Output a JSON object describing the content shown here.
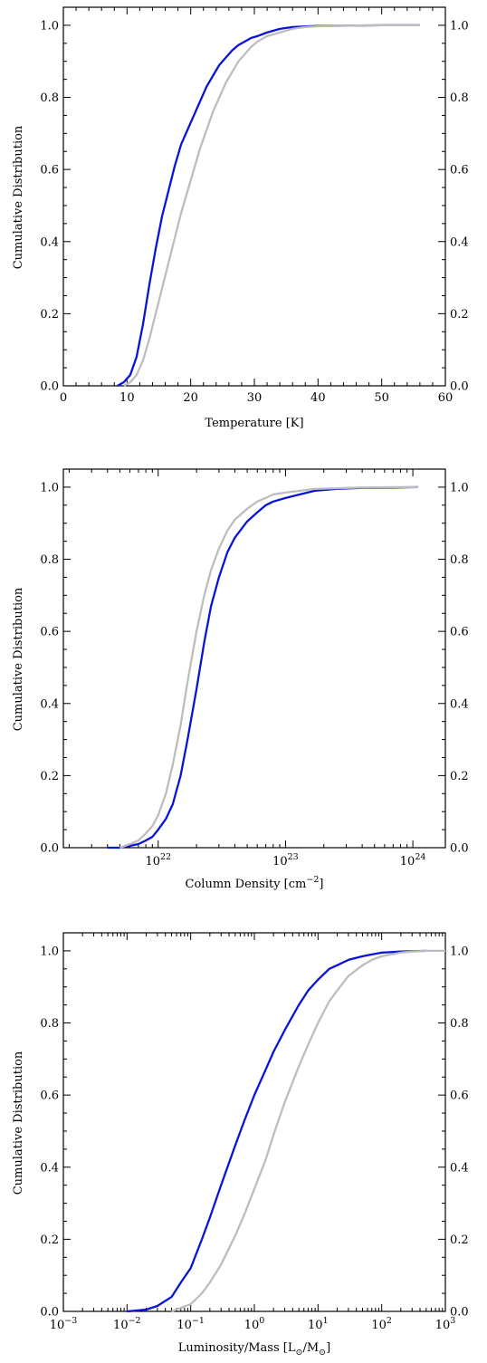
{
  "chart_data": [
    {
      "type": "line",
      "xlabel": "Temperature [K]",
      "ylabel": "Cumulative Distribution",
      "xscale": "linear",
      "xlim": [
        0,
        60
      ],
      "ylim": [
        0,
        1.05
      ],
      "x_ticks": [
        0,
        10,
        20,
        30,
        40,
        50,
        60
      ],
      "x_tick_labels": [
        "0",
        "10",
        "20",
        "30",
        "40",
        "50",
        "60"
      ],
      "y_ticks": [
        0,
        0.2,
        0.4,
        0.6,
        0.8,
        1.0
      ],
      "y_tick_labels": [
        "0.0",
        "0.2",
        "0.4",
        "0.6",
        "0.8",
        "1.0"
      ],
      "right_tick_labels": true,
      "grid": false,
      "legend": "none",
      "series": [
        {
          "color": "#0a14d8",
          "x": [
            8.5,
            9.5,
            10.5,
            11.5,
            12.5,
            13.5,
            14.5,
            15.5,
            16.5,
            17.5,
            18.5,
            19.5,
            20.5,
            21.5,
            22.5,
            23.5,
            24.5,
            25.5,
            26.5,
            27.5,
            28.5,
            29.5,
            30.5,
            32,
            34,
            36,
            38,
            40,
            45,
            50,
            56
          ],
          "y": [
            0.0,
            0.01,
            0.03,
            0.08,
            0.17,
            0.28,
            0.38,
            0.47,
            0.54,
            0.61,
            0.67,
            0.71,
            0.75,
            0.79,
            0.83,
            0.86,
            0.89,
            0.91,
            0.93,
            0.945,
            0.955,
            0.965,
            0.97,
            0.98,
            0.99,
            0.995,
            0.997,
            0.998,
            0.999,
            1.0,
            1.0
          ]
        },
        {
          "color": "#bdbdbd",
          "x": [
            9.5,
            10.5,
            11.5,
            12.5,
            13.5,
            14.5,
            15.5,
            16.5,
            17.5,
            18.5,
            19.5,
            20.5,
            21.5,
            22.5,
            23.5,
            24.5,
            25.5,
            26.5,
            27.5,
            28.5,
            29.5,
            30.5,
            32,
            34,
            36,
            38,
            40,
            45,
            50,
            56
          ],
          "y": [
            0.0,
            0.01,
            0.03,
            0.07,
            0.13,
            0.2,
            0.27,
            0.34,
            0.41,
            0.48,
            0.54,
            0.6,
            0.66,
            0.71,
            0.76,
            0.8,
            0.84,
            0.87,
            0.9,
            0.92,
            0.94,
            0.955,
            0.97,
            0.98,
            0.99,
            0.995,
            0.997,
            0.999,
            1.0,
            1.0
          ]
        }
      ]
    },
    {
      "type": "line",
      "xlabel": "Column Density [cm",
      "xlabel_sup": "−2",
      "xlabel_end": "]",
      "ylabel": "Cumulative Distribution",
      "xscale": "log",
      "xlim": [
        1.8e+21,
        1.8e+24
      ],
      "ylim": [
        0,
        1.05
      ],
      "x_major_exponents": [
        22,
        23,
        24
      ],
      "x_tick_base": "10",
      "x_tick_exp_labels": [
        "22",
        "23",
        "24"
      ],
      "y_ticks": [
        0,
        0.2,
        0.4,
        0.6,
        0.8,
        1.0
      ],
      "y_tick_labels": [
        "0.0",
        "0.2",
        "0.4",
        "0.6",
        "0.8",
        "1.0"
      ],
      "right_tick_labels": true,
      "grid": false,
      "legend": "none",
      "series": [
        {
          "color": "#0a14d8",
          "x": [
            4e+21,
            5e+21,
            6e+21,
            7e+21,
            8e+21,
            9e+21,
            1e+22,
            1.15e+22,
            1.3e+22,
            1.5e+22,
            1.7e+22,
            2e+22,
            2.3e+22,
            2.6e+22,
            3e+22,
            3.5e+22,
            4e+22,
            5e+22,
            6e+22,
            7e+22,
            8e+22,
            1e+23,
            1.3e+23,
            1.7e+23,
            2.5e+23,
            4e+23,
            7e+23,
            1.1e+24
          ],
          "y": [
            0.0,
            0.0,
            0.005,
            0.01,
            0.02,
            0.03,
            0.05,
            0.08,
            0.12,
            0.2,
            0.3,
            0.44,
            0.57,
            0.67,
            0.75,
            0.82,
            0.86,
            0.905,
            0.93,
            0.95,
            0.96,
            0.97,
            0.98,
            0.99,
            0.995,
            0.998,
            0.999,
            1.0
          ]
        },
        {
          "color": "#bdbdbd",
          "x": [
            5e+21,
            6e+21,
            7e+21,
            8e+21,
            9e+21,
            1e+22,
            1.15e+22,
            1.3e+22,
            1.5e+22,
            1.7e+22,
            2e+22,
            2.3e+22,
            2.6e+22,
            3e+22,
            3.5e+22,
            4e+22,
            5e+22,
            6e+22,
            7e+22,
            8e+22,
            1e+23,
            1.3e+23,
            1.7e+23,
            2.5e+23,
            4e+23,
            7e+23,
            1.1e+24
          ],
          "y": [
            0.0,
            0.01,
            0.02,
            0.04,
            0.06,
            0.09,
            0.15,
            0.23,
            0.34,
            0.46,
            0.6,
            0.7,
            0.77,
            0.83,
            0.88,
            0.91,
            0.94,
            0.96,
            0.97,
            0.98,
            0.985,
            0.99,
            0.995,
            0.997,
            0.999,
            1.0,
            1.0
          ]
        }
      ]
    },
    {
      "type": "line",
      "xlabel": "Luminosity/Mass [L",
      "xlabel_sub1": "⊙",
      "xlabel_mid": "/M",
      "xlabel_sub2": "⊙",
      "xlabel_end": "]",
      "ylabel": "Cumulative Distribution",
      "xscale": "log",
      "xlim": [
        0.001,
        1000
      ],
      "ylim": [
        0,
        1.05
      ],
      "x_major_exponents": [
        -3,
        -2,
        -1,
        0,
        1,
        2,
        3
      ],
      "x_tick_base": "10",
      "x_tick_exp_labels": [
        "−3",
        "−2",
        "−1",
        "0",
        "1",
        "2",
        "3"
      ],
      "y_ticks": [
        0,
        0.2,
        0.4,
        0.6,
        0.8,
        1.0
      ],
      "y_tick_labels": [
        "0.0",
        "0.2",
        "0.4",
        "0.6",
        "0.8",
        "1.0"
      ],
      "right_tick_labels": true,
      "grid": false,
      "legend": "none",
      "series": [
        {
          "color": "#0a14d8",
          "x": [
            0.01,
            0.02,
            0.03,
            0.05,
            0.07,
            0.1,
            0.15,
            0.2,
            0.3,
            0.5,
            0.7,
            1,
            1.5,
            2,
            3,
            5,
            7,
            10,
            15,
            20,
            30,
            50,
            70,
            100,
            200,
            300,
            500
          ],
          "y": [
            0.0,
            0.005,
            0.015,
            0.04,
            0.08,
            0.12,
            0.2,
            0.26,
            0.35,
            0.46,
            0.53,
            0.6,
            0.67,
            0.72,
            0.78,
            0.85,
            0.89,
            0.92,
            0.95,
            0.96,
            0.975,
            0.985,
            0.99,
            0.995,
            0.998,
            0.999,
            1.0
          ]
        },
        {
          "color": "#bdbdbd",
          "x": [
            0.05,
            0.07,
            0.1,
            0.15,
            0.2,
            0.3,
            0.5,
            0.7,
            1,
            1.5,
            2,
            3,
            5,
            7,
            10,
            15,
            20,
            30,
            50,
            70,
            100,
            200,
            300,
            500,
            1000
          ],
          "y": [
            0.0,
            0.01,
            0.02,
            0.05,
            0.08,
            0.13,
            0.21,
            0.27,
            0.34,
            0.42,
            0.49,
            0.58,
            0.68,
            0.74,
            0.8,
            0.86,
            0.89,
            0.93,
            0.96,
            0.975,
            0.985,
            0.995,
            0.998,
            1.0,
            1.0
          ]
        }
      ]
    }
  ]
}
